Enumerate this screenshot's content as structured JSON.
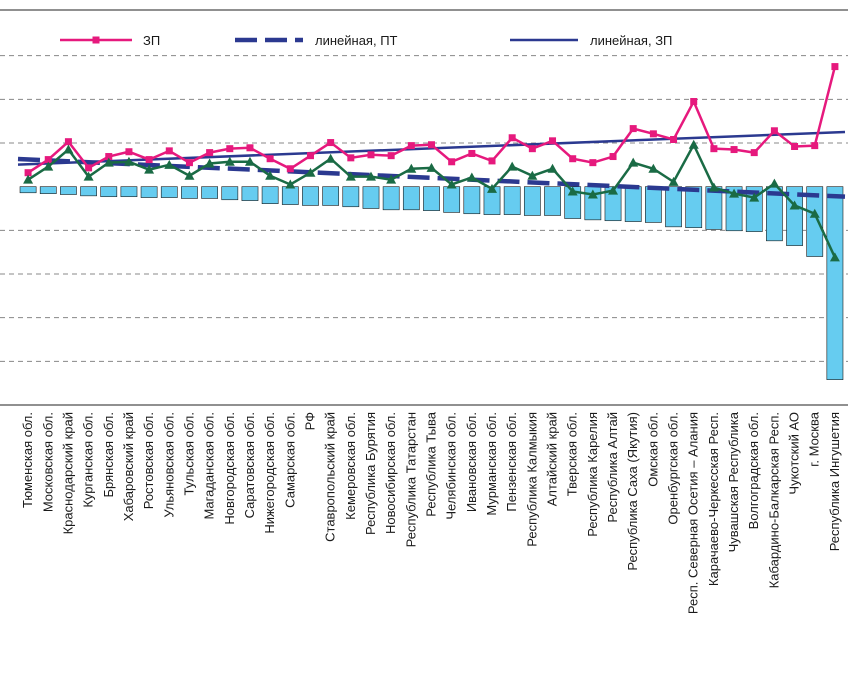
{
  "chart_data": {
    "type": "line_bar",
    "categories": [
      "Тюменская обл.",
      "Московская обл.",
      "Краснодарский край",
      "Курганская обл.",
      "Брянская обл.",
      "Хабаровский край",
      "Ростовская обл.",
      "Ульяновская обл.",
      "Тульская обл.",
      "Магаданская обл.",
      "Новгородская обл.",
      "Саратовская обл.",
      "Нижегородская обл.",
      "Самарская обл.",
      "РФ",
      "Ставропольский край",
      "Кемеровская обл.",
      "Республика Бурятия",
      "Новосибирская обл.",
      "Республика Татарстан",
      "Республика Тыва",
      "Челябинская обл.",
      "Ивановская обл.",
      "Мурманская обл.",
      "Пензенская обл.",
      "Республика Калмыкия",
      "Алтайский край",
      "Тверская обл.",
      "Республика Карелия",
      "Республика Алтай",
      "Республика Саха (Якутия)",
      "Омская обл.",
      "Оренбургская обл.",
      "Респ. Северная Осетия – Алания",
      "Карачаево-Черкесская Респ.",
      "Чувашская Республика",
      "Волгоградская обл.",
      "Кабардино-Балкарская Респ.",
      "Чукотский АО",
      "г. Москва",
      "Республика Ингушетия"
    ],
    "series": [
      {
        "name": "ЗП",
        "kind": "line",
        "marker": "square",
        "color": "#e6197d",
        "values": [
          3.2,
          6.2,
          10.3,
          4.3,
          6.9,
          8.0,
          6.2,
          8.2,
          5.5,
          7.8,
          8.7,
          8.9,
          6.4,
          4.1,
          7.1,
          10.1,
          6.6,
          7.3,
          7.1,
          9.4,
          9.6,
          5.7,
          7.6,
          5.9,
          11.2,
          8.7,
          10.5,
          6.4,
          5.5,
          6.9,
          13.3,
          12.1,
          10.8,
          19.5,
          8.7,
          8.5,
          7.8,
          12.8,
          9.2,
          9.4,
          27.5
        ],
        "trendline": {
          "name": "линейная, ЗП",
          "color": "#2b3990",
          "style": "solid"
        }
      },
      {
        "kind": "line",
        "marker": "triangle",
        "color": "#1a6b45",
        "values": [
          1.6,
          4.6,
          8.5,
          2.3,
          5.5,
          5.7,
          3.9,
          5.0,
          2.5,
          5.3,
          5.7,
          5.7,
          2.5,
          0.5,
          3.2,
          6.4,
          2.3,
          2.3,
          1.6,
          4.1,
          4.3,
          0.5,
          2.1,
          -0.5,
          4.6,
          2.5,
          4.1,
          -1.1,
          -1.8,
          -0.9,
          5.5,
          4.1,
          1.1,
          9.6,
          -0.2,
          -1.6,
          -2.5,
          0.7,
          -4.3,
          -6.2,
          -16.2
        ],
        "trendline": {
          "name": "линейная, ПТ",
          "color": "#2b3990",
          "style": "dashed"
        }
      },
      {
        "kind": "bar",
        "color": "#66ccf0",
        "values": [
          -1.4,
          -1.6,
          -1.8,
          -2.1,
          -2.3,
          -2.3,
          -2.5,
          -2.5,
          -2.7,
          -2.7,
          -3.0,
          -3.2,
          -3.9,
          -4.1,
          -4.3,
          -4.3,
          -4.6,
          -5.0,
          -5.3,
          -5.3,
          -5.5,
          -5.9,
          -6.2,
          -6.4,
          -6.4,
          -6.6,
          -6.6,
          -7.3,
          -7.6,
          -7.8,
          -8.0,
          -8.2,
          -9.2,
          -9.4,
          -9.8,
          -10.1,
          -10.3,
          -12.4,
          -13.5,
          -16.0,
          -44.2
        ]
      }
    ],
    "ylim": [
      -50,
      40
    ],
    "yticks": [
      -40,
      -30,
      -20,
      -10,
      10,
      20,
      30
    ],
    "grid": true
  }
}
